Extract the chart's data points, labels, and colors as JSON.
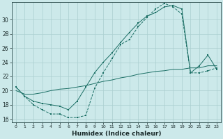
{
  "xlabel": "Humidex (Indice chaleur)",
  "bg_color": "#cce9ea",
  "grid_color": "#aacfd0",
  "line_color": "#1a6e64",
  "x": [
    0,
    1,
    2,
    3,
    4,
    5,
    6,
    7,
    8,
    9,
    10,
    11,
    12,
    13,
    14,
    15,
    16,
    17,
    18,
    19,
    20,
    21,
    22,
    23
  ],
  "line1_y": [
    20.5,
    19.2,
    18.0,
    17.3,
    16.7,
    16.7,
    16.2,
    16.2,
    16.5,
    20.3,
    22.5,
    24.5,
    26.5,
    27.2,
    29.0,
    30.3,
    31.5,
    32.3,
    31.8,
    30.8,
    22.5,
    22.5,
    22.8,
    23.2
  ],
  "line2_y": [
    20.5,
    19.2,
    18.5,
    18.2,
    18.0,
    17.8,
    17.3,
    18.5,
    20.5,
    22.5,
    24.0,
    25.3,
    26.8,
    28.2,
    29.5,
    30.5,
    31.0,
    31.8,
    32.0,
    31.5,
    22.5,
    23.5,
    25.0,
    23.0
  ],
  "line3_y": [
    20.0,
    19.5,
    19.5,
    19.7,
    20.0,
    20.2,
    20.3,
    20.5,
    20.7,
    21.0,
    21.3,
    21.5,
    21.8,
    22.0,
    22.3,
    22.5,
    22.7,
    22.8,
    23.0,
    23.0,
    23.2,
    23.2,
    23.5,
    23.5
  ],
  "xlim": [
    -0.5,
    23.5
  ],
  "ylim": [
    15.5,
    32.5
  ],
  "xticks": [
    0,
    1,
    2,
    3,
    4,
    5,
    6,
    7,
    8,
    9,
    10,
    11,
    12,
    13,
    14,
    15,
    16,
    17,
    18,
    19,
    20,
    21,
    22,
    23
  ],
  "yticks": [
    16,
    18,
    20,
    22,
    24,
    26,
    28,
    30
  ]
}
